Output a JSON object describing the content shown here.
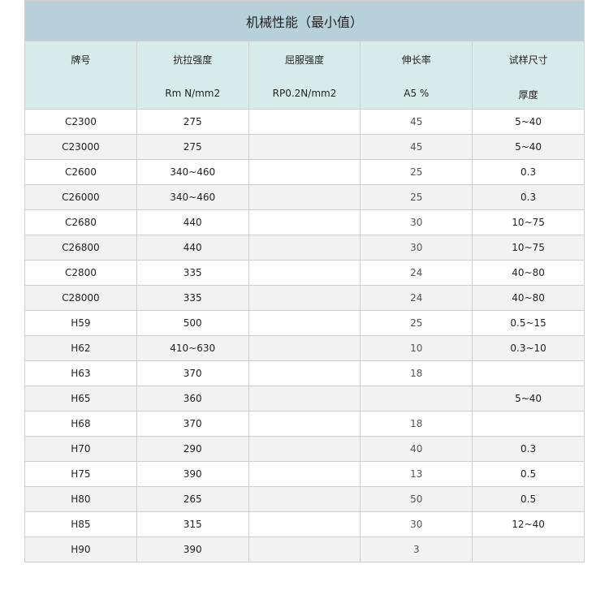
{
  "title": "机械性能（最小值）",
  "columns": [
    {
      "line1": "牌号",
      "line2": ""
    },
    {
      "line1": "抗拉强度",
      "line2": "Rm N/mm2"
    },
    {
      "line1": "屈服强度",
      "line2": "RP0.2N/mm2"
    },
    {
      "line1": "伸长率",
      "line2": "A5 %"
    },
    {
      "line1": "试样尺寸",
      "line2": "厚度"
    }
  ],
  "rows": [
    [
      "C2300",
      "275",
      "",
      "45",
      "5~40"
    ],
    [
      "C23000",
      "275",
      "",
      "45",
      "5~40"
    ],
    [
      "C2600",
      "340~460",
      "",
      "25",
      "0.3"
    ],
    [
      "C26000",
      "340~460",
      "",
      "25",
      "0.3"
    ],
    [
      "C2680",
      "440",
      "",
      "30",
      "10~75"
    ],
    [
      "C26800",
      "440",
      "",
      "30",
      "10~75"
    ],
    [
      "C2800",
      "335",
      "",
      "24",
      "40~80"
    ],
    [
      "C28000",
      "335",
      "",
      "24",
      "40~80"
    ],
    [
      "H59",
      "500",
      "",
      "25",
      "0.5~15"
    ],
    [
      "H62",
      "410~630",
      "",
      "10",
      "0.3~10"
    ],
    [
      "H63",
      "370",
      "",
      "18",
      ""
    ],
    [
      "H65",
      "360",
      "",
      "",
      "5~40"
    ],
    [
      "H68",
      "370",
      "",
      "18",
      ""
    ],
    [
      "H70",
      "290",
      "",
      "40",
      "0.3"
    ],
    [
      "H75",
      "390",
      "",
      "13",
      "0.5"
    ],
    [
      "H80",
      "265",
      "",
      "50",
      "0.5"
    ],
    [
      "H85",
      "315",
      "",
      "30",
      "12~40"
    ],
    [
      "H90",
      "390",
      "",
      "3",
      ""
    ]
  ],
  "colors": {
    "title_bg": "#b8d0da",
    "header_bg": "#d7ebe9",
    "stripe": "#f2f2f2",
    "border": "#cfcfcf"
  }
}
